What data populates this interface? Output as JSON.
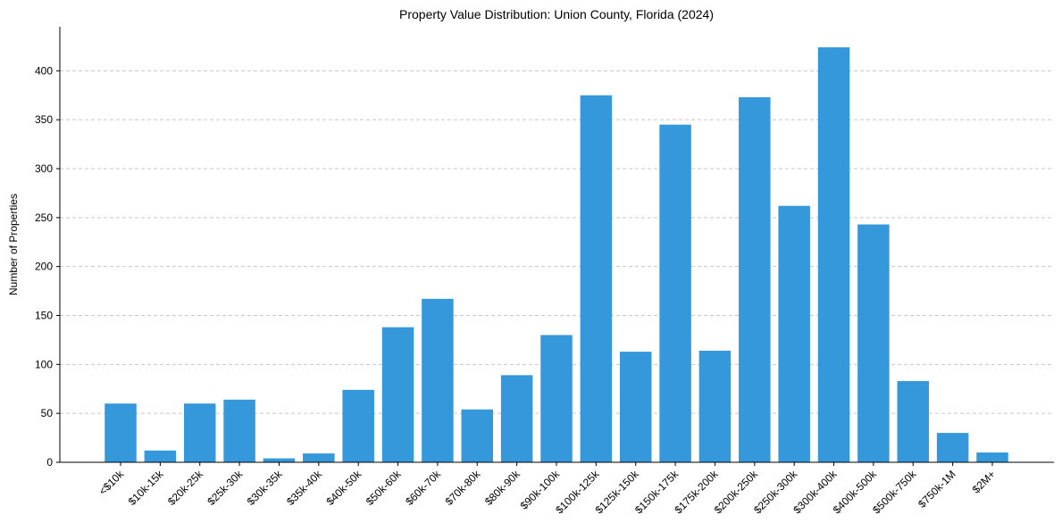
{
  "chart_data": {
    "type": "bar",
    "title": "Property Value Distribution: Union County, Florida (2024)",
    "xlabel": "",
    "ylabel": "Number of Properties",
    "ylim": [
      0,
      445
    ],
    "yticks": [
      0,
      50,
      100,
      150,
      200,
      250,
      300,
      350,
      400
    ],
    "grid": "y-dashed",
    "bar_color": "#3498db",
    "grid_color": "#c8c8c8",
    "categories": [
      "<$10k",
      "$10k-15k",
      "$20k-25k",
      "$25k-30k",
      "$30k-35k",
      "$35k-40k",
      "$40k-50k",
      "$50k-60k",
      "$60k-70k",
      "$70k-80k",
      "$80k-90k",
      "$90k-100k",
      "$100k-125k",
      "$125k-150k",
      "$150k-175k",
      "$175k-200k",
      "$200k-250k",
      "$250k-300k",
      "$300k-400k",
      "$400k-500k",
      "$500k-750k",
      "$750k-1M",
      "$2M+"
    ],
    "values": [
      60,
      12,
      60,
      64,
      4,
      9,
      74,
      138,
      167,
      54,
      89,
      130,
      375,
      113,
      345,
      114,
      373,
      262,
      424,
      243,
      83,
      30,
      10
    ]
  }
}
